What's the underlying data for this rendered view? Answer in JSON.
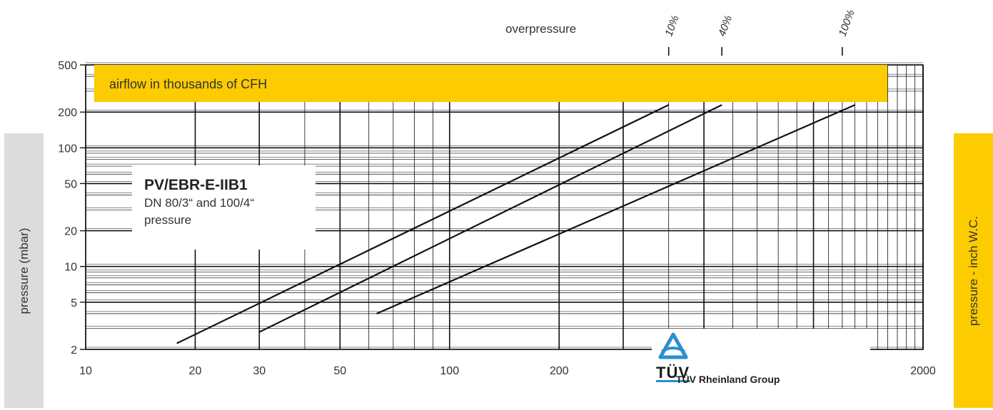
{
  "chart_data": {
    "type": "line",
    "title": "PV/EBR-E-IIB1",
    "subtitle_lines": [
      "DN 80/3“ and 100/4“",
      "pressure"
    ],
    "band_label": "airflow in thousands of CFH",
    "ylabel_left": "pressure (mbar)",
    "ylabel_right": "pressure  - inch W.C.",
    "x_scale": "log",
    "y_scale": "log",
    "xlim": [
      10,
      2000
    ],
    "ylim": [
      2,
      500
    ],
    "x_ticks": [
      10,
      20,
      30,
      50,
      100,
      200,
      2000
    ],
    "x_tick_labels": [
      "10",
      "20",
      "30",
      "50",
      "100",
      "200",
      "2000"
    ],
    "y_ticks": [
      2,
      5,
      10,
      20,
      50,
      100,
      200,
      500
    ],
    "y_tick_labels": [
      "2",
      "5",
      "10",
      "20",
      "50",
      "100",
      "200",
      "500"
    ],
    "grid": true,
    "overpressure": {
      "title": "overpressure",
      "markers": [
        {
          "label": "10%",
          "x": 400
        },
        {
          "label": "40%",
          "x": 560
        },
        {
          "label": "100%",
          "x": 1200
        }
      ]
    },
    "series": [
      {
        "x": [
          17.8,
          400
        ],
        "y": [
          2.25,
          230
        ]
      },
      {
        "x": [
          30,
          560
        ],
        "y": [
          2.8,
          230
        ]
      },
      {
        "x": [
          63,
          1300
        ],
        "y": [
          4,
          230
        ]
      }
    ]
  },
  "brand": {
    "name": "TÜV Rheinland Group",
    "mark": "TÜV",
    "colors": {
      "yellow": "#fccb00",
      "gray": "#dcdcdc",
      "blue": "#2a8fcf"
    }
  }
}
